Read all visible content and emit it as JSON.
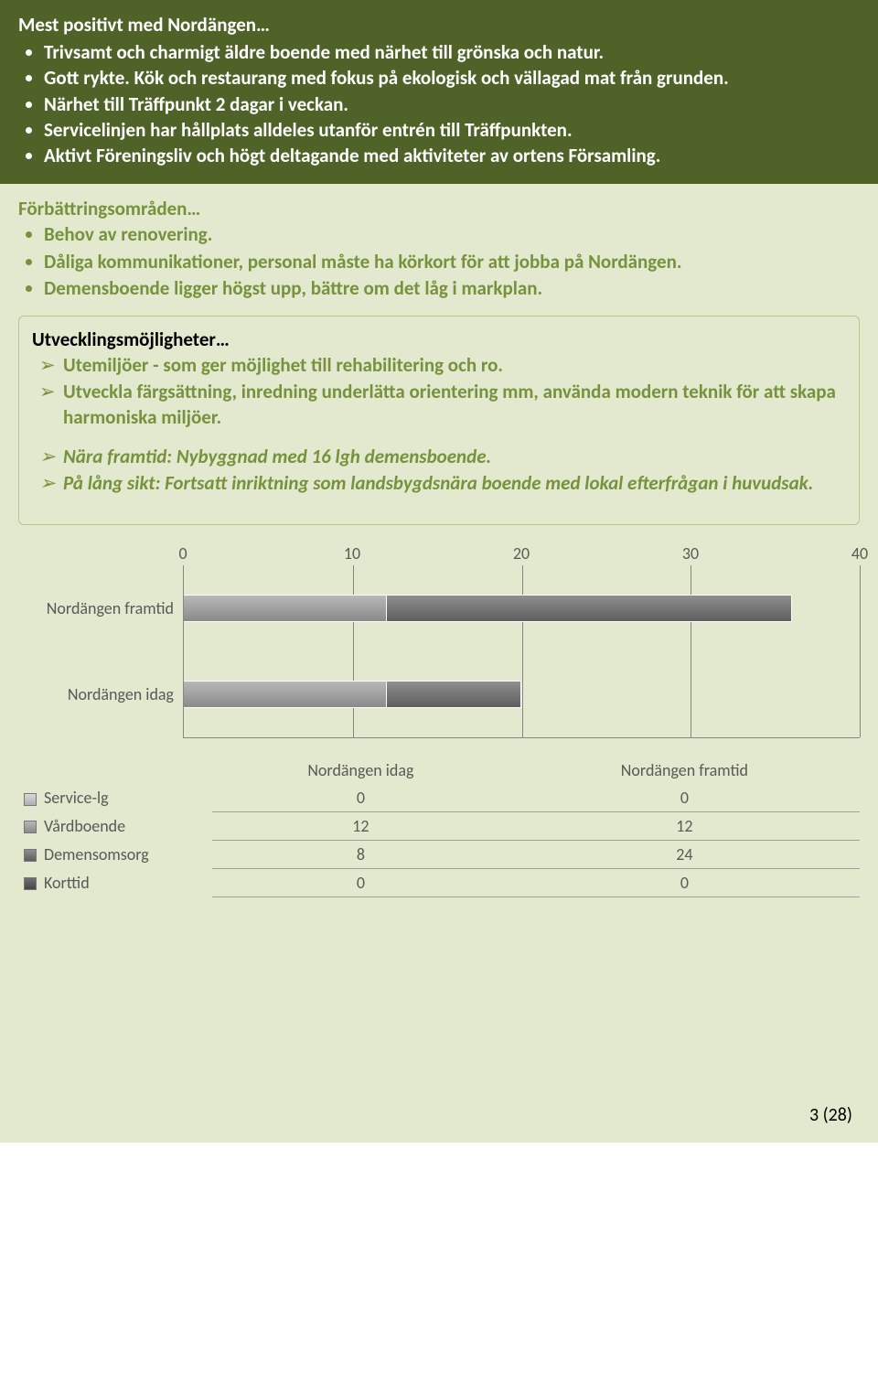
{
  "positives": {
    "title": "Mest positivt med Nordängen…",
    "items": [
      "Trivsamt och charmigt äldre boende med närhet till grönska och natur.",
      "Gott rykte. Kök och restaurang med fokus på ekologisk och vällagad mat från grunden.",
      "Närhet till Träffpunkt 2 dagar i veckan.",
      "Servicelinjen har hållplats alldeles utanför entrén till Träffpunkten.",
      "Aktivt Föreningsliv och högt deltagande med aktiviteter av ortens Församling."
    ]
  },
  "improvements": {
    "title": "Förbättringsområden…",
    "items": [
      "Behov av renovering.",
      "Dåliga kommunikationer, personal måste ha körkort för att jobba på Nordängen.",
      "Demensboende ligger högst upp, bättre om det låg i markplan."
    ]
  },
  "development": {
    "title": "Utvecklingsmöjligheter…",
    "items1": [
      "Utemiljöer - som ger möjlighet till rehabilitering och ro.",
      "Utveckla färgsättning, inredning underlätta orientering mm, använda modern teknik för att skapa harmoniska miljöer."
    ],
    "items2": [
      "Nära framtid: Nybyggnad med 16 lgh demensboende.",
      "På lång sikt: Fortsatt inriktning som landsbygdsnära boende med lokal efterfrågan i huvudsak."
    ]
  },
  "chart": {
    "type": "stacked-bar-horizontal",
    "xmax": 40,
    "tick_step": 10,
    "ticks": [
      "0",
      "10",
      "20",
      "30",
      "40"
    ],
    "categories": [
      "Nordängen framtid",
      "Nordängen idag"
    ],
    "series": [
      {
        "name": "Service-lg",
        "class": "leg-service"
      },
      {
        "name": "Vårdboende",
        "class": "leg-vard"
      },
      {
        "name": "Demensomsorg",
        "class": "leg-demens"
      },
      {
        "name": "Korttid",
        "class": "leg-korttid"
      }
    ],
    "headers": [
      "Nordängen idag",
      "Nordängen framtid"
    ],
    "rows": [
      {
        "label": "Service-lg",
        "idag": "0",
        "framtid": "0"
      },
      {
        "label": "Vårdboende",
        "idag": "12",
        "framtid": "12"
      },
      {
        "label": "Demensomsorg",
        "idag": "8",
        "framtid": "24"
      },
      {
        "label": "Korttid",
        "idag": "0",
        "framtid": "0"
      }
    ],
    "bars": {
      "Nordängen framtid": [
        0,
        12,
        24,
        0
      ],
      "Nordängen idag": [
        0,
        12,
        8,
        0
      ]
    },
    "colors": {
      "bg": "#e2e9ce",
      "grid": "#868686",
      "text": "#595959"
    }
  },
  "footer": "3 (28)"
}
